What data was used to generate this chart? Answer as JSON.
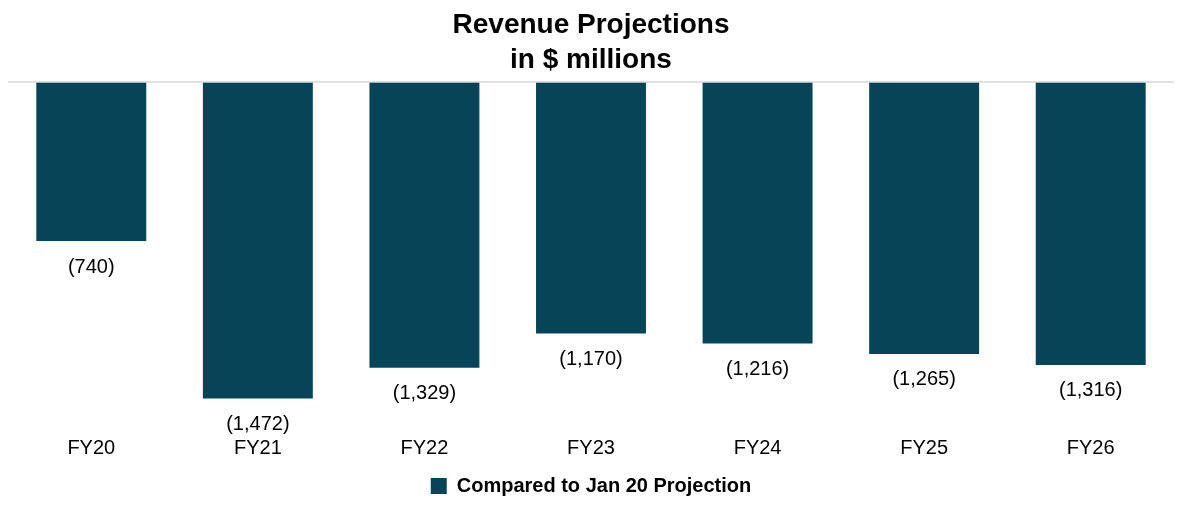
{
  "chart_data": {
    "type": "bar",
    "title": "Revenue Projections",
    "subtitle": "in $ millions",
    "categories": [
      "FY20",
      "FY21",
      "FY22",
      "FY23",
      "FY24",
      "FY25",
      "FY26"
    ],
    "series": [
      {
        "name": "Compared to Jan 20 Projection",
        "color": "#074457",
        "values": [
          -740,
          -1472,
          -1329,
          -1170,
          -1216,
          -1265,
          -1316
        ],
        "value_labels": [
          "(740)",
          "(1,472)",
          "(1,329)",
          "(1,170)",
          "(1,216)",
          "(1,265)",
          "(1,316)"
        ]
      }
    ],
    "grid": false,
    "legend": "bottom"
  }
}
